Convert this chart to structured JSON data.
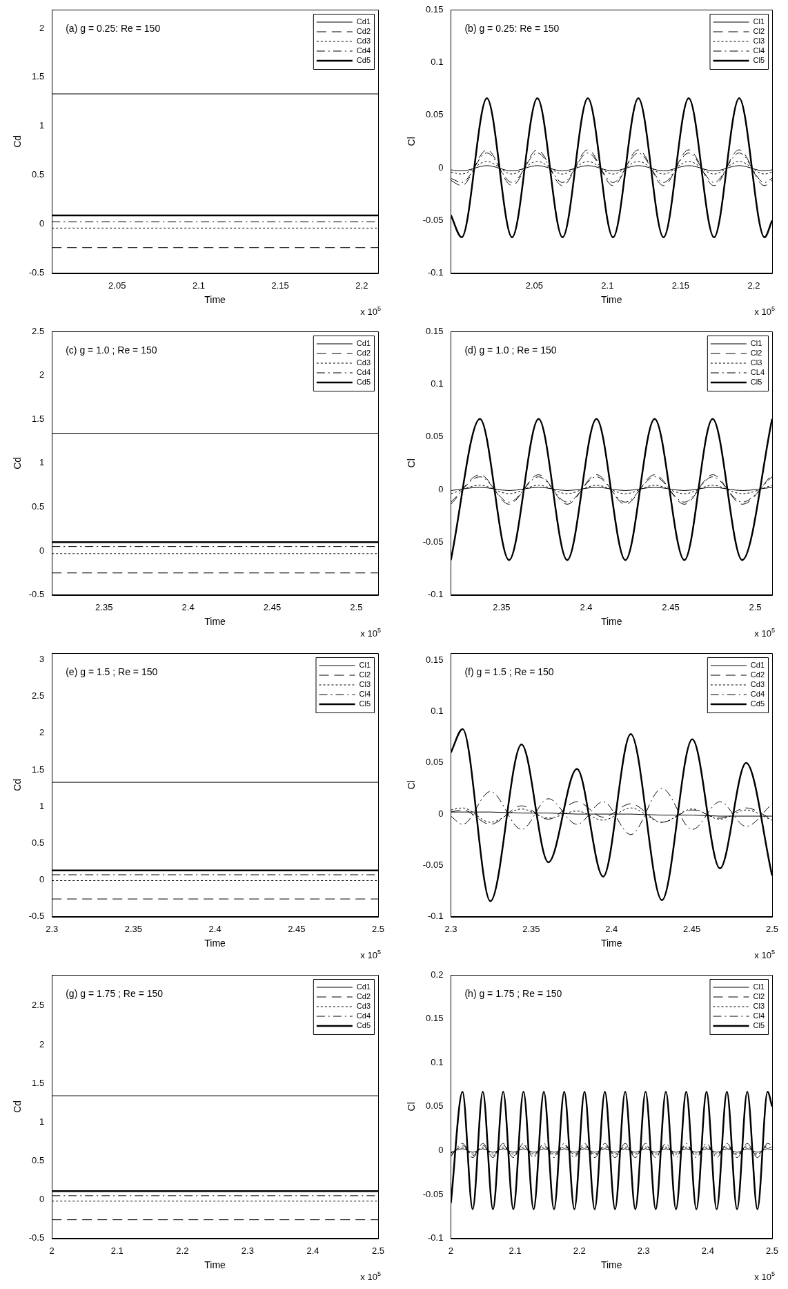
{
  "chart_data": [
    {
      "type": "line",
      "title": "(a) g = 0.25: Re = 150",
      "xlabel": "Time",
      "ylabel": "Cd",
      "annotations": [
        "x 10$^{5}$"
      ],
      "legend": "top right",
      "x": [
        2.01,
        2.21
      ],
      "xlim": [
        2.01,
        2.21
      ],
      "xticks": [
        2.05,
        2.1,
        2.15,
        2.2
      ],
      "ylim": [
        -0.5,
        2.19
      ],
      "yticks": [
        -0.5,
        0,
        0.5,
        1,
        1.5,
        2
      ],
      "series": [
        {
          "name": "Cd1",
          "color": "#000000",
          "line_style": "solid",
          "values": [
            1.33,
            1.33
          ]
        },
        {
          "name": "Cd2",
          "color": "#000000",
          "line_style": "dashed",
          "values": [
            -0.24,
            -0.24
          ]
        },
        {
          "name": "Cd3",
          "color": "#000000",
          "line_style": "dotted",
          "values": [
            -0.04,
            -0.04
          ]
        },
        {
          "name": "Cd4",
          "color": "#000000",
          "line_style": "dashdot",
          "values": [
            0.025,
            0.025
          ]
        },
        {
          "name": "Cd5",
          "color": "#000000",
          "line_style": "solid",
          "values": [
            0.09,
            0.09
          ]
        }
      ]
    },
    {
      "type": "line",
      "title": "(b) g = 0.25: Re = 150",
      "xlabel": "Time",
      "ylabel": "Cl",
      "annotations": [
        "x 10$^{5}$"
      ],
      "legend": "top right",
      "x": [
        1.993,
        2.0004,
        2.0176,
        2.0348,
        2.0521,
        2.0693,
        2.0866,
        2.1038,
        2.1211,
        2.1383,
        2.1555,
        2.1728,
        2.19,
        2.2073,
        2.2125
      ],
      "xlim": [
        1.993,
        2.2125
      ],
      "xticks": [
        2.05,
        2.1,
        2.15,
        2.2
      ],
      "ylim": [
        -0.1,
        0.15
      ],
      "yticks": [
        -0.1,
        -0.05,
        0,
        0.05,
        0.1,
        0.15
      ],
      "series": [
        {
          "name": "Cl1",
          "color": "#000000",
          "line_style": "solid",
          "values": [
            -0.002,
            -0.003,
            0.002,
            -0.003,
            0.002,
            -0.003,
            0.002,
            -0.003,
            0.002,
            -0.003,
            0.002,
            -0.003,
            0.002,
            -0.003,
            -0.002
          ]
        },
        {
          "name": "Cl2",
          "color": "#000000",
          "line_style": "dashed",
          "values": [
            -0.012,
            -0.017,
            0.017,
            -0.017,
            0.017,
            -0.017,
            0.017,
            -0.017,
            0.017,
            -0.017,
            0.017,
            -0.017,
            0.017,
            -0.017,
            -0.012
          ]
        },
        {
          "name": "Cl3",
          "color": "#000000",
          "line_style": "dotted",
          "values": [
            -0.004,
            -0.006,
            0.006,
            -0.006,
            0.006,
            -0.006,
            0.006,
            -0.006,
            0.006,
            -0.006,
            0.006,
            -0.006,
            0.006,
            -0.006,
            -0.004
          ]
        },
        {
          "name": "Cl4",
          "color": "#000000",
          "line_style": "dashdot",
          "values": [
            -0.01,
            -0.014,
            0.014,
            -0.014,
            0.014,
            -0.014,
            0.014,
            -0.014,
            0.014,
            -0.014,
            0.014,
            -0.014,
            0.014,
            -0.014,
            -0.01
          ]
        },
        {
          "name": "Cl5",
          "color": "#000000",
          "line_style": "solid",
          "values": [
            -0.045,
            -0.066,
            0.066,
            -0.066,
            0.066,
            -0.066,
            0.066,
            -0.066,
            0.066,
            -0.066,
            0.066,
            -0.066,
            0.066,
            -0.066,
            -0.05
          ]
        }
      ]
    },
    {
      "type": "line",
      "title": "(c) g = 1.0 ; Re = 150",
      "xlabel": "Time",
      "ylabel": "Cd",
      "annotations": [
        "x 10$^{5}$"
      ],
      "legend": "top right",
      "x": [
        2.319,
        2.513
      ],
      "xlim": [
        2.319,
        2.513
      ],
      "xticks": [
        2.35,
        2.4,
        2.45,
        2.5
      ],
      "ylim": [
        -0.5,
        2.5
      ],
      "yticks": [
        -0.5,
        0,
        0.5,
        1,
        1.5,
        2,
        2.5
      ],
      "series": [
        {
          "name": "Cd1",
          "color": "#000000",
          "line_style": "solid",
          "values": [
            1.34,
            1.34
          ]
        },
        {
          "name": "Cd2",
          "color": "#000000",
          "line_style": "dashed",
          "values": [
            -0.25,
            -0.25
          ]
        },
        {
          "name": "Cd3",
          "color": "#000000",
          "line_style": "dotted",
          "values": [
            -0.03,
            -0.03
          ]
        },
        {
          "name": "Cd4",
          "color": "#000000",
          "line_style": "dashdot",
          "values": [
            0.05,
            0.05
          ]
        },
        {
          "name": "Cd5",
          "color": "#000000",
          "line_style": "solid",
          "values": [
            0.1,
            0.1
          ]
        }
      ]
    },
    {
      "type": "line",
      "title": "(d) g = 1.0 ; Re = 150",
      "xlabel": "Time",
      "ylabel": "Cl",
      "annotations": [
        "x 10$^{5}$"
      ],
      "legend": "top right",
      "x": [
        2.32,
        2.3372,
        2.3544,
        2.3719,
        2.3888,
        2.4061,
        2.4232,
        2.4405,
        2.4581,
        2.4748,
        2.4923,
        2.51
      ],
      "xlim": [
        2.32,
        2.51
      ],
      "xticks": [
        2.35,
        2.4,
        2.45,
        2.5
      ],
      "ylim": [
        -0.1,
        0.15
      ],
      "yticks": [
        -0.1,
        -0.05,
        0,
        0.05,
        0.1,
        0.15
      ],
      "series": [
        {
          "name": "Cl1",
          "color": "#000000",
          "line_style": "solid",
          "values": [
            -0.001,
            0.002,
            -0.001,
            0.002,
            -0.001,
            0.002,
            -0.001,
            0.002,
            -0.001,
            0.002,
            -0.001,
            0.002
          ]
        },
        {
          "name": "Cl2",
          "color": "#000000",
          "line_style": "dashed",
          "values": [
            -0.014,
            0.014,
            -0.014,
            0.014,
            -0.014,
            0.014,
            -0.014,
            0.014,
            -0.014,
            0.014,
            -0.014,
            0.014
          ]
        },
        {
          "name": "Cl3",
          "color": "#000000",
          "line_style": "dotted",
          "values": [
            -0.004,
            0.004,
            -0.004,
            0.004,
            -0.004,
            0.004,
            -0.004,
            0.004,
            -0.004,
            0.004,
            -0.004,
            0.004
          ]
        },
        {
          "name": "CL4",
          "color": "#000000",
          "line_style": "dashdot",
          "values": [
            -0.012,
            0.012,
            -0.012,
            0.012,
            -0.012,
            0.012,
            -0.012,
            0.012,
            -0.012,
            0.012,
            -0.012,
            0.012
          ]
        },
        {
          "name": "Cl5",
          "color": "#000000",
          "line_style": "solid",
          "values": [
            -0.067,
            0.067,
            -0.067,
            0.067,
            -0.067,
            0.067,
            -0.067,
            0.067,
            -0.067,
            0.067,
            -0.067,
            0.067
          ]
        }
      ]
    },
    {
      "type": "line",
      "title": "(e) g = 1.5 ; Re = 150",
      "xlabel": "Time",
      "ylabel": "Cd",
      "annotations": [
        "x 10$^{5}$"
      ],
      "legend": "top right",
      "x": [
        2.3,
        2.5
      ],
      "xlim": [
        2.3,
        2.5
      ],
      "xticks": [
        2.3,
        2.35,
        2.4,
        2.45,
        2.5
      ],
      "ylim": [
        -0.5,
        3.09
      ],
      "yticks": [
        -0.5,
        0,
        0.5,
        1,
        1.5,
        2,
        2.5,
        3
      ],
      "series": [
        {
          "name": "Cl1",
          "color": "#000000",
          "line_style": "solid",
          "values": [
            1.33,
            1.33
          ]
        },
        {
          "name": "Cl2",
          "color": "#000000",
          "line_style": "dashed",
          "values": [
            -0.26,
            -0.26
          ]
        },
        {
          "name": "Cl3",
          "color": "#000000",
          "line_style": "dotted",
          "values": [
            -0.01,
            -0.01
          ]
        },
        {
          "name": "Cl4",
          "color": "#000000",
          "line_style": "dashdot",
          "values": [
            0.07,
            0.07
          ]
        },
        {
          "name": "Cl5",
          "color": "#000000",
          "line_style": "solid",
          "values": [
            0.13,
            0.13
          ]
        }
      ]
    },
    {
      "type": "line",
      "title": "(f) g = 1.5 ; Re = 150",
      "xlabel": "Time",
      "ylabel": "Cl",
      "annotations": [
        "x 10$^{5}$"
      ],
      "legend": "top right",
      "x": [
        2.3,
        2.3073,
        2.3246,
        2.344,
        2.3607,
        2.3785,
        2.3948,
        2.412,
        2.4314,
        2.4503,
        2.4675,
        2.4838,
        2.5
      ],
      "xlim": [
        2.3,
        2.5
      ],
      "xticks": [
        2.3,
        2.35,
        2.4,
        2.45,
        2.5
      ],
      "ylim": [
        -0.1,
        0.157
      ],
      "yticks": [
        -0.1,
        -0.05,
        0,
        0.05,
        0.1,
        0.15
      ],
      "series": [
        {
          "name": "Cd1",
          "color": "#000000",
          "line_style": "solid",
          "values": [
            0.002,
            0.002,
            0.002,
            0.001,
            0.001,
            0,
            0,
            0,
            -0.001,
            -0.001,
            -0.002,
            -0.002,
            -0.002
          ]
        },
        {
          "name": "Cd2",
          "color": "#000000",
          "line_style": "dashed",
          "values": [
            0.002,
            0.004,
            -0.01,
            0.008,
            -0.005,
            0.012,
            -0.003,
            0.01,
            -0.008,
            0.004,
            -0.004,
            0.006,
            -0.005
          ]
        },
        {
          "name": "Cd3",
          "color": "#000000",
          "line_style": "dotted",
          "values": [
            0.004,
            0.006,
            -0.008,
            0.005,
            -0.004,
            0.003,
            -0.006,
            0.006,
            -0.008,
            0.005,
            -0.005,
            0.004,
            -0.006
          ]
        },
        {
          "name": "Cd4",
          "color": "#000000",
          "line_style": "dashdot",
          "values": [
            -0.002,
            -0.01,
            0.022,
            -0.015,
            0.015,
            -0.01,
            0.012,
            -0.02,
            0.025,
            -0.015,
            0.012,
            -0.012,
            0.01
          ]
        },
        {
          "name": "Cd5",
          "color": "#000000",
          "line_style": "solid",
          "values": [
            0.06,
            0.083,
            -0.085,
            0.068,
            -0.047,
            0.044,
            -0.061,
            0.078,
            -0.084,
            0.073,
            -0.053,
            0.05,
            -0.06
          ]
        }
      ]
    },
    {
      "type": "line",
      "title": "(g) g = 1.75 ; Re = 150",
      "xlabel": "Time",
      "ylabel": "Cd",
      "annotations": [
        "x 10$^{5}$"
      ],
      "legend": "top right",
      "x": [
        2,
        2.5
      ],
      "xlim": [
        2,
        2.5
      ],
      "xticks": [
        2,
        2.1,
        2.2,
        2.3,
        2.4,
        2.5
      ],
      "ylim": [
        -0.5,
        2.9
      ],
      "yticks": [
        -0.5,
        0,
        0.5,
        1,
        1.5,
        2,
        2.5
      ],
      "series": [
        {
          "name": "Cd1",
          "color": "#000000",
          "line_style": "solid",
          "values": [
            1.34,
            1.34
          ]
        },
        {
          "name": "Cd2",
          "color": "#000000",
          "line_style": "dashed",
          "values": [
            -0.26,
            -0.26
          ]
        },
        {
          "name": "Cd3",
          "color": "#000000",
          "line_style": "dotted",
          "values": [
            -0.02,
            -0.02
          ]
        },
        {
          "name": "Cd4",
          "color": "#000000",
          "line_style": "dashdot",
          "values": [
            0.05,
            0.05
          ]
        },
        {
          "name": "Cd5",
          "color": "#000000",
          "line_style": "solid",
          "values": [
            0.11,
            0.11
          ]
        }
      ]
    },
    {
      "type": "line",
      "title": "(h) g = 1.75 ; Re = 150",
      "xlabel": "Time",
      "ylabel": "Cl",
      "annotations": [
        "x 10$^{5}$"
      ],
      "legend": "top right",
      "x": [
        2,
        2.0181,
        2.0339,
        2.0497,
        2.0655,
        2.0814,
        2.0972,
        2.113,
        2.1288,
        2.1447,
        2.1605,
        2.1764,
        2.1922,
        2.208,
        2.2238,
        2.2397,
        2.2555,
        2.2713,
        2.2871,
        2.303,
        2.3188,
        2.3346,
        2.3504,
        2.3663,
        2.3821,
        2.3979,
        2.4137,
        2.4296,
        2.4454,
        2.4613,
        2.4771,
        2.4929,
        2.5
      ],
      "xlim": [
        2,
        2.5
      ],
      "xticks": [
        2,
        2.1,
        2.2,
        2.3,
        2.4,
        2.5
      ],
      "ylim": [
        -0.1,
        0.2
      ],
      "yticks": [
        -0.1,
        -0.05,
        0,
        0.05,
        0.1,
        0.15,
        0.2
      ],
      "series": [
        {
          "name": "Cl1",
          "color": "#000000",
          "line_style": "solid",
          "values": [
            -0.002,
            0.002,
            -0.002,
            0.002,
            -0.002,
            0.002,
            -0.002,
            0.002,
            -0.002,
            0.002,
            -0.002,
            0.002,
            -0.002,
            0.002,
            -0.002,
            0.002,
            -0.002,
            0.002,
            -0.002,
            0.002,
            -0.002,
            0.002,
            -0.002,
            0.002,
            -0.002,
            0.002,
            -0.002,
            0.002,
            -0.002,
            0.002,
            -0.002,
            0.002,
            0.001
          ]
        },
        {
          "name": "Cl2",
          "color": "#000000",
          "line_style": "dashed",
          "values": [
            -0.005,
            0.006,
            -0.006,
            0.006,
            -0.006,
            0.006,
            -0.006,
            0.006,
            -0.006,
            0.006,
            -0.006,
            0.006,
            -0.006,
            0.006,
            -0.006,
            0.006,
            -0.006,
            0.006,
            -0.006,
            0.006,
            -0.006,
            0.006,
            -0.006,
            0.006,
            -0.006,
            0.006,
            -0.006,
            0.006,
            -0.006,
            0.006,
            -0.006,
            0.006,
            0.004
          ]
        },
        {
          "name": "Cl3",
          "color": "#000000",
          "line_style": "dotted",
          "values": [
            -0.003,
            0.004,
            -0.004,
            0.004,
            -0.004,
            0.004,
            -0.004,
            0.004,
            -0.004,
            0.004,
            -0.004,
            0.004,
            -0.004,
            0.004,
            -0.004,
            0.004,
            -0.004,
            0.004,
            -0.004,
            0.004,
            -0.004,
            0.004,
            -0.004,
            0.004,
            -0.004,
            0.004,
            -0.004,
            0.004,
            -0.004,
            0.004,
            -0.004,
            0.004,
            0.003
          ]
        },
        {
          "name": "Cl4",
          "color": "#000000",
          "line_style": "dashdot",
          "values": [
            -0.007,
            0.008,
            -0.008,
            0.008,
            -0.008,
            0.008,
            -0.008,
            0.008,
            -0.008,
            0.008,
            -0.008,
            0.008,
            -0.008,
            0.008,
            -0.008,
            0.008,
            -0.008,
            0.008,
            -0.008,
            0.008,
            -0.008,
            0.008,
            -0.008,
            0.008,
            -0.008,
            0.008,
            -0.008,
            0.008,
            -0.008,
            0.008,
            -0.008,
            0.008,
            0.006
          ]
        },
        {
          "name": "Cl5",
          "color": "#000000",
          "line_style": "solid",
          "values": [
            -0.06,
            0.067,
            -0.067,
            0.067,
            -0.067,
            0.067,
            -0.067,
            0.067,
            -0.067,
            0.067,
            -0.067,
            0.067,
            -0.067,
            0.067,
            -0.067,
            0.067,
            -0.067,
            0.067,
            -0.067,
            0.067,
            -0.067,
            0.067,
            -0.067,
            0.067,
            -0.067,
            0.067,
            -0.067,
            0.067,
            -0.067,
            0.067,
            -0.067,
            0.067,
            0.05
          ]
        }
      ]
    }
  ]
}
